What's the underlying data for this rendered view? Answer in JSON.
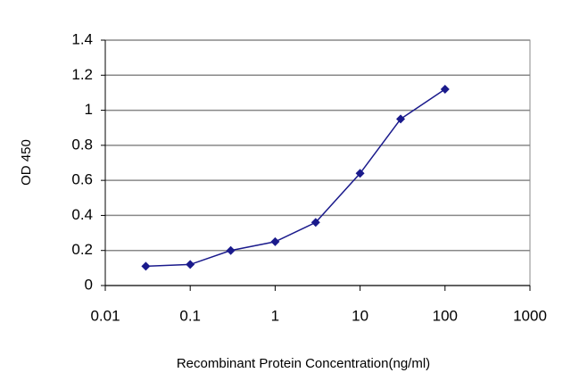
{
  "chart_data": {
    "type": "line",
    "x_label": "Recombinant Protein Concentration(ng/ml)",
    "y_label": "OD 450",
    "x": [
      0.03,
      0.1,
      0.3,
      1,
      3,
      10,
      30,
      100
    ],
    "series": [
      {
        "color": "#1a1a8c",
        "values": [
          0.11,
          0.12,
          0.2,
          0.25,
          0.36,
          0.64,
          0.95,
          1.12
        ]
      }
    ],
    "xscale": "log",
    "xlim": [
      0.01,
      1000
    ],
    "xticks": [
      0.01,
      0.1,
      1,
      10,
      100,
      1000
    ],
    "ylim": [
      0,
      1.4
    ],
    "yticks": [
      0,
      0.2,
      0.4,
      0.6,
      0.8,
      1,
      1.2,
      1.4
    ],
    "grid": true,
    "marker": "diamond"
  }
}
